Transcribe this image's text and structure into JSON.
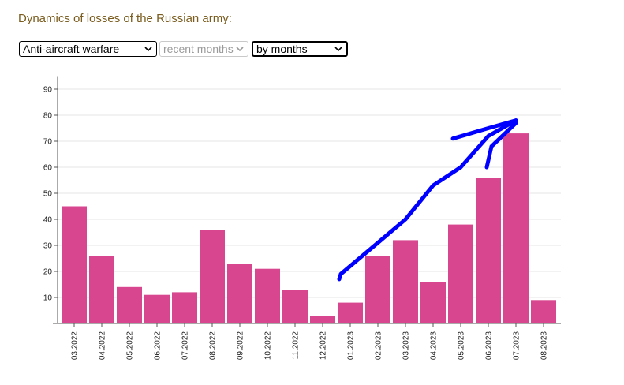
{
  "header": {
    "title": "Dynamics of losses of the Russian army:"
  },
  "filters": {
    "category": "Anti-aircraft warfare",
    "period": "recent months",
    "period_disabled": true,
    "grouping": "by months"
  },
  "colors": {
    "bar": "#d94690",
    "grid": "#e4e4e4",
    "axis": "#555555",
    "title": "#7a5c1e",
    "annotation": "#0000ff"
  },
  "chart_data": {
    "type": "bar",
    "title": "",
    "xlabel": "",
    "ylabel": "",
    "ylim": [
      0,
      95
    ],
    "yticks": [
      10,
      20,
      30,
      40,
      50,
      60,
      70,
      80,
      90
    ],
    "grid": true,
    "categories": [
      "03.2022",
      "04.2022",
      "05.2022",
      "06.2022",
      "07.2022",
      "08.2022",
      "09.2022",
      "10.2022",
      "11.2022",
      "12.2022",
      "01.2023",
      "02.2023",
      "03.2023",
      "04.2023",
      "05.2023",
      "06.2023",
      "07.2023",
      "08.2023"
    ],
    "values": [
      45,
      26,
      14,
      11,
      12,
      36,
      23,
      21,
      13,
      3,
      8,
      26,
      32,
      16,
      38,
      56,
      73,
      9
    ],
    "annotations": [
      {
        "type": "hand-drawn-arrow",
        "path": [
          [
            "01.2023",
            17
          ],
          [
            "01.2023",
            19
          ],
          [
            "02.2023",
            31
          ],
          [
            "03.2023",
            40
          ],
          [
            "04.2023",
            53
          ],
          [
            "05.2023",
            60
          ],
          [
            "06.2023",
            72
          ],
          [
            "07.2023",
            78
          ]
        ],
        "head_left": [
          [
            "05.2023",
            71
          ],
          [
            "06.2023",
            75
          ],
          [
            "07.2023",
            78
          ]
        ],
        "head_right": [
          [
            "06.2023",
            60
          ],
          [
            "06.2023",
            68
          ],
          [
            "07.2023",
            77
          ]
        ]
      }
    ]
  }
}
